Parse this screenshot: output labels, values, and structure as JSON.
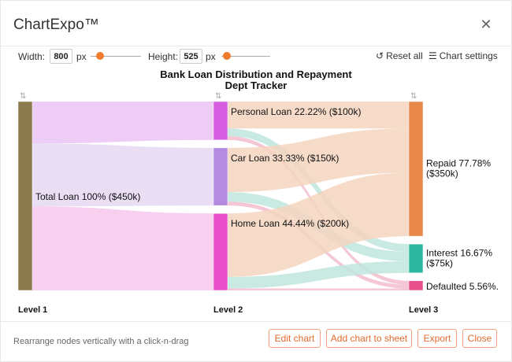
{
  "app": {
    "title": "ChartExpo™"
  },
  "toolbar": {
    "width_label": "Width:",
    "width_value": "800",
    "height_label": "Height:",
    "height_value": "525",
    "unit": "px",
    "reset_label": "Reset all",
    "settings_label": "Chart settings"
  },
  "chart_data": {
    "type": "sankey",
    "title": "Bank Loan Distribution and Repayment Dept Tracker",
    "title_lines": [
      "Bank Loan Distribution and Repayment",
      "Dept Tracker"
    ],
    "level_labels": [
      "Level 1",
      "Level 2",
      "Level 3"
    ],
    "nodes": [
      {
        "id": "total",
        "level": 0,
        "label": "Total Loan 100% ($450k)",
        "value": 450,
        "color": "#8a7a4e"
      },
      {
        "id": "personal",
        "level": 1,
        "label": "Personal Loan 22.22% ($100k)",
        "value": 100,
        "color": "#d45de0"
      },
      {
        "id": "car",
        "level": 1,
        "label": "Car Loan 33.33% ($150k)",
        "value": 150,
        "color": "#b38be0"
      },
      {
        "id": "home",
        "level": 1,
        "label": "Home Loan 44.44% ($200k)",
        "value": 200,
        "color": "#e84fc8"
      },
      {
        "id": "repaid",
        "level": 2,
        "label_lines": [
          "Repaid 77.78%",
          "($350k)"
        ],
        "label": "Repaid 77.78% ($350k)",
        "value": 350,
        "color": "#e8894a"
      },
      {
        "id": "interest",
        "level": 2,
        "label_lines": [
          "Interest 16.67%",
          "($75k)"
        ],
        "label": "Interest 16.67% ($75k)",
        "value": 75,
        "color": "#2fb8a0"
      },
      {
        "id": "defaulted",
        "level": 2,
        "label": "Defaulted 5.56%.",
        "value": 25,
        "color": "#e8508a"
      }
    ],
    "links": [
      {
        "source": "total",
        "target": "personal",
        "value": 100,
        "color": "#eac3f3"
      },
      {
        "source": "total",
        "target": "car",
        "value": 150,
        "color": "#e6d8f3"
      },
      {
        "source": "total",
        "target": "home",
        "value": 200,
        "color": "#f7c7ec"
      },
      {
        "source": "personal",
        "target": "repaid",
        "value": 70,
        "color": "#f5d5c0"
      },
      {
        "source": "personal",
        "target": "interest",
        "value": 20,
        "color": "#bfe6de"
      },
      {
        "source": "personal",
        "target": "defaulted",
        "value": 10,
        "color": "#f3bccd"
      },
      {
        "source": "car",
        "target": "repaid",
        "value": 115,
        "color": "#f5d5c0"
      },
      {
        "source": "car",
        "target": "interest",
        "value": 25,
        "color": "#bfe6de"
      },
      {
        "source": "car",
        "target": "defaulted",
        "value": 10,
        "color": "#f3bccd"
      },
      {
        "source": "home",
        "target": "repaid",
        "value": 165,
        "color": "#f5d5c0"
      },
      {
        "source": "home",
        "target": "interest",
        "value": 30,
        "color": "#bfe6de"
      },
      {
        "source": "home",
        "target": "defaulted",
        "value": 5,
        "color": "#f3bccd"
      }
    ]
  },
  "footer": {
    "hint": "Rearrange nodes vertically with a click-n-drag",
    "edit_label": "Edit chart",
    "add_label": "Add chart to sheet",
    "export_label": "Export",
    "close_label": "Close"
  },
  "colors": {
    "accent": "#f07b2c",
    "button_border": "#f0a07a",
    "button_text": "#e36a2e"
  },
  "icons": {
    "close": "close-icon",
    "reset": "reset-icon",
    "settings": "sliders-icon",
    "sort": "sort-arrows-icon"
  }
}
